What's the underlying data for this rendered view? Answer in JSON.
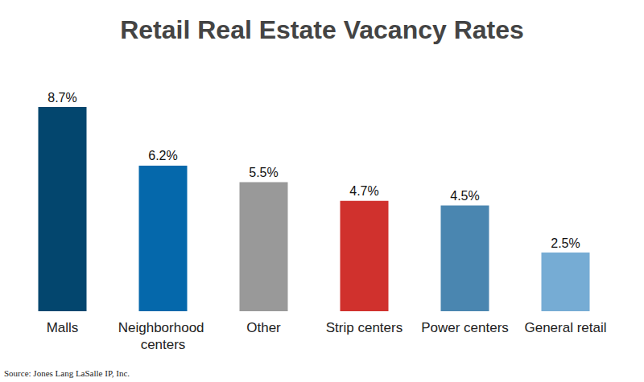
{
  "chart_data": {
    "type": "bar",
    "title": "Retail Real Estate Vacancy Rates",
    "categories": [
      "Malls",
      "Neighborhood centers",
      "Other",
      "Strip centers",
      "Power centers",
      "General retail"
    ],
    "values": [
      8.7,
      6.2,
      5.5,
      4.7,
      4.5,
      2.5
    ],
    "value_labels": [
      "8.7%",
      "6.2%",
      "5.5%",
      "4.7%",
      "4.5%",
      "2.5%"
    ],
    "colors": [
      "#03466e",
      "#0568ab",
      "#999999",
      "#d0312d",
      "#4a86b0",
      "#76acd4"
    ],
    "ylim": [
      0,
      8.7
    ],
    "grid": false,
    "data_labels": true,
    "tick_labels": "x",
    "source": "Source: Jones Lang LaSalle IP, Inc."
  }
}
